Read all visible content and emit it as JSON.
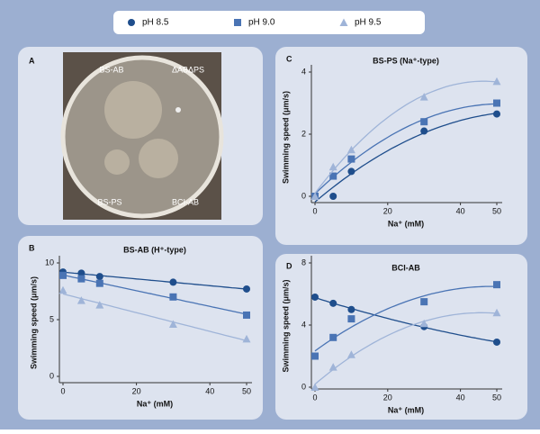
{
  "legend": {
    "items": [
      {
        "name": "pH 8.5",
        "color": "#1f4e8c",
        "marker": "circle"
      },
      {
        "name": "pH 9.0",
        "color": "#4a74b4",
        "marker": "square"
      },
      {
        "name": "pH 9.5",
        "color": "#9fb4d8",
        "marker": "triangle"
      }
    ]
  },
  "panel_a": {
    "letter": "A",
    "labels": [
      "BS-AB",
      "ΔABΔPS",
      "BS-PS",
      "BCI-AB"
    ]
  },
  "chart_data": [
    {
      "type": "scatter",
      "panel": "B",
      "title": "BS-AB (H⁺-type)",
      "x_label": "Na⁺ (mM)",
      "y_label": "Swimming speed (μm/s)",
      "x": [
        0,
        5,
        10,
        30,
        50
      ],
      "xlim": [
        0,
        50
      ],
      "xticks": [
        0,
        20,
        40,
        50
      ],
      "ylim": [
        0,
        10
      ],
      "yticks": [
        0,
        5,
        10
      ],
      "fit_degree": 1,
      "series": [
        {
          "values": [
            9.2,
            9.1,
            8.8,
            8.3,
            7.7
          ]
        },
        {
          "values": [
            8.9,
            8.6,
            8.2,
            7.0,
            5.4
          ]
        },
        {
          "values": [
            7.6,
            6.7,
            6.3,
            4.6,
            3.3
          ]
        }
      ]
    },
    {
      "type": "scatter",
      "panel": "C",
      "title": "BS-PS (Na⁺-type)",
      "x_label": "Na⁺ (mM)",
      "y_label": "Swimming speed (μm/s)",
      "x": [
        0,
        5,
        10,
        30,
        50
      ],
      "xlim": [
        0,
        50
      ],
      "xticks": [
        0,
        20,
        40,
        50
      ],
      "ylim": [
        0,
        4
      ],
      "yticks": [
        0,
        2,
        4
      ],
      "fit_degree": 2,
      "series": [
        {
          "values": [
            0,
            0,
            0.8,
            2.1,
            2.65
          ]
        },
        {
          "values": [
            0,
            0.65,
            1.2,
            2.4,
            3.0
          ]
        },
        {
          "values": [
            0,
            0.95,
            1.5,
            3.2,
            3.7
          ]
        }
      ]
    },
    {
      "type": "scatter",
      "panel": "D",
      "title": "BCI-AB",
      "x_label": "Na⁺ (mM)",
      "y_label": "Swimming speed (μm/s)",
      "x": [
        0,
        5,
        10,
        30,
        50
      ],
      "xlim": [
        0,
        50
      ],
      "xticks": [
        0,
        20,
        40,
        50
      ],
      "ylim": [
        0,
        8
      ],
      "yticks": [
        0,
        4,
        8
      ],
      "fit_degree": 2,
      "series": [
        {
          "values": [
            5.8,
            5.4,
            5.0,
            3.9,
            2.9
          ]
        },
        {
          "values": [
            2.0,
            3.2,
            4.4,
            5.5,
            6.6
          ]
        },
        {
          "values": [
            0,
            1.3,
            2.1,
            4.1,
            4.8
          ]
        }
      ]
    }
  ]
}
